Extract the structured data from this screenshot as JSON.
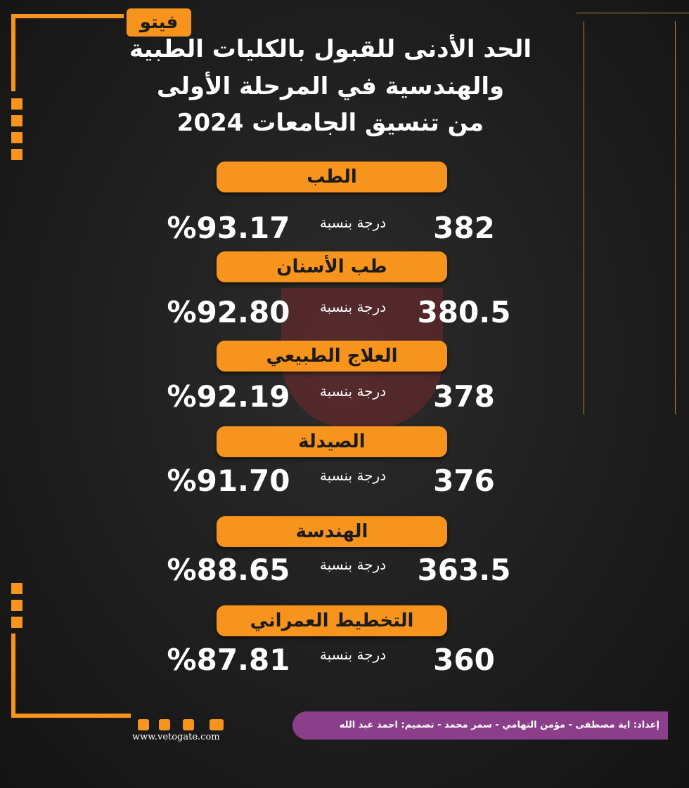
{
  "logo": "فيتو",
  "header": {
    "title_lines": [
      "الحد الأدنى للقبول بالكليات الطبية",
      "والهندسية في المرحلة الأولى",
      "من تنسيق الجامعات 2024"
    ]
  },
  "items": [
    {
      "faculty": "الطب",
      "score": "382",
      "label": "درجة بنسبة",
      "percent": "%93.17"
    },
    {
      "faculty": "طب الأسنان",
      "score": "380.5",
      "label": "درجة بنسبة",
      "percent": "%92.80"
    },
    {
      "faculty": "العلاج الطبيعي",
      "score": "378",
      "label": "درجة بنسبة",
      "percent": "%92.19"
    },
    {
      "faculty": "الصيدلة",
      "score": "376",
      "label": "درجة بنسبة",
      "percent": "%91.70"
    },
    {
      "faculty": "الهندسة",
      "score": "363.5",
      "label": "درجة بنسبة",
      "percent": "%88.65"
    },
    {
      "faculty": "التخطيط العمراني",
      "score": "360",
      "label": "درجة بنسبة",
      "percent": "%87.81"
    }
  ],
  "footer": {
    "credits": "إعداد: اية مصطفى - مؤمن التهامي - سمر محمد - تصميم: احمد عبد الله",
    "website": "www.vetogate.com"
  }
}
